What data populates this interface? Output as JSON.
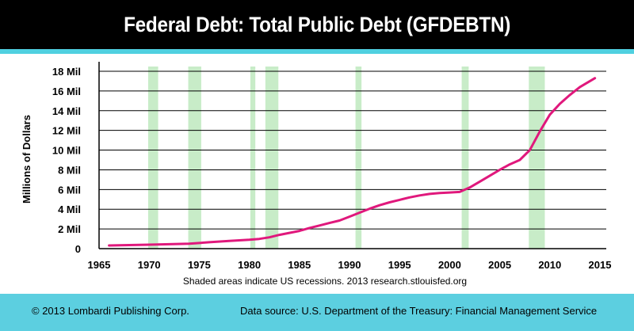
{
  "header": {
    "title": "Federal Debt: Total Public Debt (GFDEBTN)"
  },
  "footer": {
    "copyright": "© 2013 Lombardi Publishing Corp.",
    "source": "Data source: U.S. Department of the Treasury: Financial Management Service"
  },
  "colors": {
    "title_background": "#000000",
    "accent_cyan": "#5ccfe0",
    "line": "#e0187c",
    "recession": "#c8ecc8"
  },
  "chart_data": {
    "type": "line",
    "title": "Federal Debt: Total Public Debt (GFDEBTN)",
    "xlabel": "",
    "ylabel": "Millions of Dollars",
    "note": "Shaded areas indicate US recessions. 2013 research.stlouisfed.org",
    "xlim": [
      1965,
      2015
    ],
    "ylim": [
      0,
      18
    ],
    "x_ticks": [
      "1965",
      "1970",
      "1975",
      "1980",
      "1985",
      "1990",
      "1995",
      "2000",
      "2005",
      "2010",
      "2015"
    ],
    "y_ticks": [
      {
        "value": 0,
        "label": "0"
      },
      {
        "value": 2,
        "label": "2 Mil"
      },
      {
        "value": 4,
        "label": "4 Mil"
      },
      {
        "value": 6,
        "label": "6 Mil"
      },
      {
        "value": 8,
        "label": "8 Mil"
      },
      {
        "value": 10,
        "label": "10 Mil"
      },
      {
        "value": 12,
        "label": "12 Mil"
      },
      {
        "value": 14,
        "label": "14 Mil"
      },
      {
        "value": 16,
        "label": "16 Mil"
      },
      {
        "value": 18,
        "label": "18 Mil"
      }
    ],
    "grid": true,
    "recessions": [
      [
        1969.9,
        1970.9
      ],
      [
        1973.9,
        1975.2
      ],
      [
        1980.1,
        1980.6
      ],
      [
        1981.6,
        1982.9
      ],
      [
        1990.6,
        1991.2
      ],
      [
        2001.2,
        2001.9
      ],
      [
        2007.9,
        2009.5
      ]
    ],
    "series": [
      {
        "x": [
          1966,
          1968,
          1970,
          1972,
          1974,
          1976,
          1978,
          1980,
          1981,
          1982,
          1983,
          1985,
          1986,
          1987,
          1988,
          1989,
          1990,
          1991,
          1992,
          1993,
          1994,
          1995,
          1996,
          1997,
          1998,
          1999,
          2000,
          2001,
          2002,
          2003,
          2004,
          2005,
          2006,
          2007,
          2008,
          2009,
          2010,
          2011,
          2012,
          2013,
          2014.5
        ],
        "values": [
          0.32,
          0.36,
          0.4,
          0.45,
          0.5,
          0.65,
          0.78,
          0.9,
          0.99,
          1.15,
          1.4,
          1.8,
          2.1,
          2.35,
          2.6,
          2.85,
          3.25,
          3.65,
          4.05,
          4.4,
          4.7,
          4.95,
          5.2,
          5.4,
          5.55,
          5.65,
          5.7,
          5.75,
          6.2,
          6.8,
          7.4,
          8.0,
          8.55,
          9.0,
          10.0,
          11.9,
          13.6,
          14.7,
          15.6,
          16.4,
          17.3
        ]
      }
    ]
  }
}
